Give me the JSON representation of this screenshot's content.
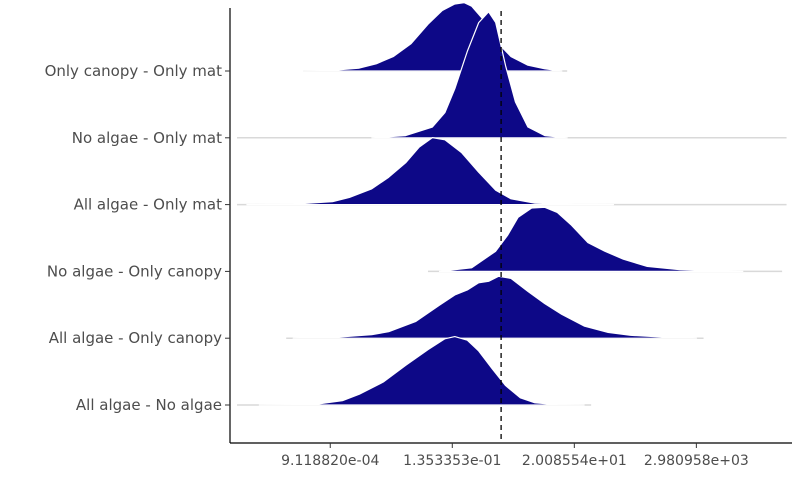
{
  "chart_data": {
    "type": "ridgeline",
    "title": "",
    "xlabel": "",
    "ylabel": "",
    "x_scale": "log",
    "xlim": [
      1.5e-05,
      150000
    ],
    "x_ticks": [
      {
        "value": 0.000911882,
        "label": "9.118820e-04"
      },
      {
        "value": 0.1353353,
        "label": "1.353353e-01"
      },
      {
        "value": 20.08554,
        "label": "2.008554e+01"
      },
      {
        "value": 2980.958,
        "label": "2.980958e+03"
      }
    ],
    "reference_line": {
      "x": 1.0,
      "style": "dashed"
    },
    "fill_color": "#0D0887",
    "outline_color": "#ffffff",
    "categories": [
      "All algae - No algae",
      "All algae - Only canopy",
      "No algae - Only canopy",
      "All algae - Only mat",
      "No algae - Only mat",
      "Only canopy - Only mat"
    ],
    "series": [
      {
        "name": "All algae - No algae",
        "x_range": [
          2e-05,
          40
        ],
        "peak_x": 0.15,
        "shape": [
          [
            5e-05,
            0
          ],
          [
            0.0005,
            0.01
          ],
          [
            0.0015,
            0.06
          ],
          [
            0.003,
            0.15
          ],
          [
            0.008,
            0.32
          ],
          [
            0.02,
            0.55
          ],
          [
            0.05,
            0.77
          ],
          [
            0.1,
            0.92
          ],
          [
            0.15,
            0.95
          ],
          [
            0.25,
            0.9
          ],
          [
            0.4,
            0.75
          ],
          [
            0.7,
            0.5
          ],
          [
            1.2,
            0.27
          ],
          [
            2.2,
            0.1
          ],
          [
            4,
            0.03
          ],
          [
            10,
            0.005
          ],
          [
            30,
            0
          ]
        ]
      },
      {
        "name": "All algae - Only canopy",
        "x_range": [
          0.00015,
          4000
        ],
        "peak_x": 1.0,
        "shape": [
          [
            0.0002,
            0
          ],
          [
            0.001,
            0.01
          ],
          [
            0.005,
            0.05
          ],
          [
            0.01,
            0.09
          ],
          [
            0.03,
            0.23
          ],
          [
            0.08,
            0.46
          ],
          [
            0.15,
            0.6
          ],
          [
            0.25,
            0.67
          ],
          [
            0.4,
            0.77
          ],
          [
            0.6,
            0.79
          ],
          [
            0.9,
            0.86
          ],
          [
            1.5,
            0.83
          ],
          [
            3,
            0.65
          ],
          [
            6,
            0.48
          ],
          [
            12,
            0.33
          ],
          [
            30,
            0.17
          ],
          [
            80,
            0.08
          ],
          [
            200,
            0.04
          ],
          [
            800,
            0.015
          ],
          [
            3000,
            0
          ]
        ]
      },
      {
        "name": "No algae - Only canopy",
        "x_range": [
          0.05,
          100000
        ],
        "peak_x": 5,
        "shape": [
          [
            0.08,
            0
          ],
          [
            0.3,
            0.05
          ],
          [
            0.8,
            0.28
          ],
          [
            1.3,
            0.5
          ],
          [
            2,
            0.75
          ],
          [
            3.5,
            0.88
          ],
          [
            6,
            0.89
          ],
          [
            10,
            0.82
          ],
          [
            18,
            0.64
          ],
          [
            35,
            0.4
          ],
          [
            70,
            0.28
          ],
          [
            150,
            0.17
          ],
          [
            400,
            0.07
          ],
          [
            1500,
            0.025
          ],
          [
            8000,
            0.005
          ],
          [
            20000,
            0
          ]
        ]
      },
      {
        "name": "All algae - Only mat",
        "x_range": [
          2e-05,
          120000
        ],
        "peak_x": 0.06,
        "shape": [
          [
            3e-05,
            0
          ],
          [
            0.0002,
            0.005
          ],
          [
            0.001,
            0.04
          ],
          [
            0.002,
            0.1
          ],
          [
            0.005,
            0.22
          ],
          [
            0.01,
            0.38
          ],
          [
            0.02,
            0.58
          ],
          [
            0.035,
            0.8
          ],
          [
            0.06,
            0.93
          ],
          [
            0.1,
            0.9
          ],
          [
            0.2,
            0.72
          ],
          [
            0.4,
            0.45
          ],
          [
            0.8,
            0.2
          ],
          [
            1.5,
            0.08
          ],
          [
            4,
            0.02
          ],
          [
            20,
            0.003
          ],
          [
            100,
            0
          ]
        ]
      },
      {
        "name": "No algae - Only mat",
        "x_range": [
          2e-05,
          120000
        ],
        "peak_x": 0.6,
        "shape": [
          [
            0.005,
            0
          ],
          [
            0.02,
            0.03
          ],
          [
            0.06,
            0.15
          ],
          [
            0.1,
            0.35
          ],
          [
            0.15,
            0.68
          ],
          [
            0.25,
            1.2
          ],
          [
            0.4,
            1.6
          ],
          [
            0.6,
            1.75
          ],
          [
            0.8,
            1.6
          ],
          [
            1.2,
            1.0
          ],
          [
            1.8,
            0.5
          ],
          [
            3,
            0.15
          ],
          [
            6,
            0.03
          ],
          [
            15,
            0
          ]
        ]
      },
      {
        "name": "Only canopy - Only mat",
        "x_range": [
          0.0003,
          15
        ],
        "peak_x": 0.2,
        "shape": [
          [
            0.0003,
            0
          ],
          [
            0.001,
            0.01
          ],
          [
            0.003,
            0.04
          ],
          [
            0.006,
            0.1
          ],
          [
            0.012,
            0.2
          ],
          [
            0.025,
            0.38
          ],
          [
            0.05,
            0.65
          ],
          [
            0.09,
            0.84
          ],
          [
            0.15,
            0.93
          ],
          [
            0.22,
            0.95
          ],
          [
            0.3,
            0.9
          ],
          [
            0.5,
            0.7
          ],
          [
            0.8,
            0.42
          ],
          [
            1.5,
            0.2
          ],
          [
            3,
            0.08
          ],
          [
            6,
            0.03
          ],
          [
            12,
            0
          ]
        ]
      }
    ]
  }
}
